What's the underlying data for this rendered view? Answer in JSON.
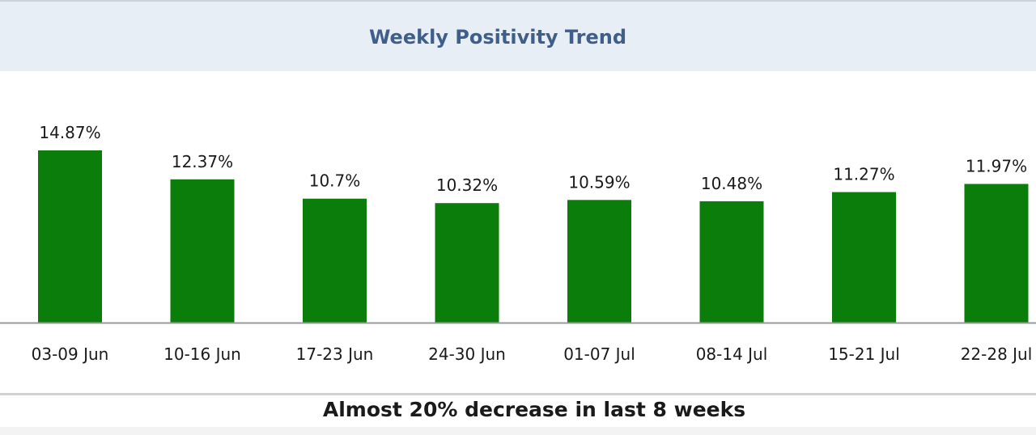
{
  "header": {
    "title": "Weekly Positivity Trend"
  },
  "footer": {
    "caption": "Almost 20% decrease in last 8 weeks"
  },
  "colors": {
    "bar": "#0b7d0b",
    "header_background": "#e8eef5",
    "title": "#3f5f8a",
    "text": "#1a1a1a"
  },
  "chart_data": {
    "type": "bar",
    "title": "Weekly Positivity Trend",
    "xlabel": "",
    "ylabel": "",
    "categories": [
      "03-09 Jun",
      "10-16 Jun",
      "17-23 Jun",
      "24-30 Jun",
      "01-07 Jul",
      "08-14 Jul",
      "15-21 Jul",
      "22-28 Jul"
    ],
    "values": [
      14.87,
      12.37,
      10.7,
      10.32,
      10.59,
      10.48,
      11.27,
      11.97
    ],
    "data_labels": [
      "14.87%",
      "12.37%",
      "10.7%",
      "10.32%",
      "10.59%",
      "10.48%",
      "11.27%",
      "11.97%"
    ],
    "unit": "%",
    "ylim": [
      0,
      14.87
    ],
    "grid": false,
    "legend": "none",
    "annotation": "Almost 20% decrease in last 8 weeks"
  }
}
